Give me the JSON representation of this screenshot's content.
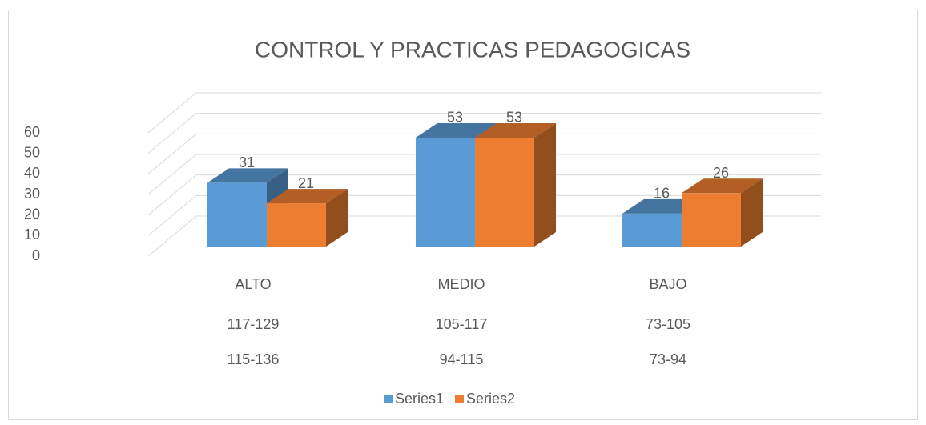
{
  "chart_data": {
    "type": "bar3d",
    "title": "CONTROL Y PRACTICAS PEDAGOGICAS",
    "categories": [
      [
        "ALTO",
        "117-129",
        "115-136"
      ],
      [
        "MEDIO",
        "105-117",
        "94-115"
      ],
      [
        "BAJO",
        "73-105",
        "73-94"
      ]
    ],
    "series": [
      {
        "name": "Series1",
        "color": "#5b9bd5",
        "values": [
          31,
          53,
          16
        ]
      },
      {
        "name": "Series2",
        "color": "#ed7d31",
        "values": [
          21,
          53,
          26
        ]
      }
    ],
    "ylim": [
      0,
      60
    ],
    "yticks": [
      0,
      10,
      20,
      30,
      40,
      50,
      60
    ],
    "grid": true,
    "legend": "bottom"
  }
}
